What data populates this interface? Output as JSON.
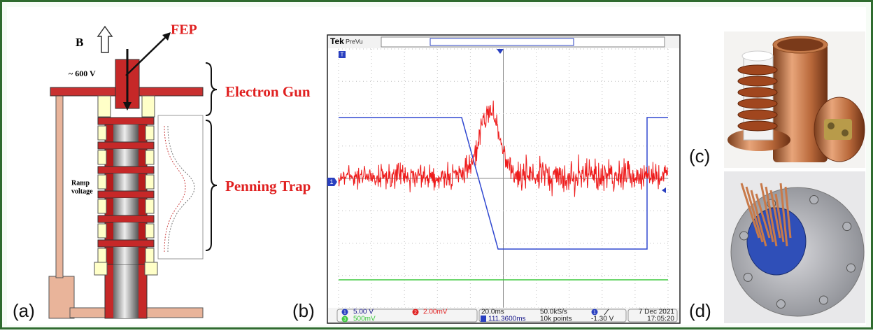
{
  "labels": {
    "a": "(a)",
    "b": "(b)",
    "c": "(c)",
    "d": "(d)"
  },
  "diagram": {
    "field": "B",
    "fep": "FEP",
    "voltage": "~ 600 V",
    "electron_gun": "Electron Gun",
    "penning_trap": "Penning Trap",
    "ramp": [
      "Ramp",
      "voltage"
    ]
  },
  "scope": {
    "brand": "Tek",
    "mode": "PreVu",
    "trigger_marker": "T",
    "ch_marker": "1",
    "status": {
      "ch1_num": "1",
      "ch1_scale": "5.00 V",
      "ch2_num": "2",
      "ch2_scale": "2.00mV",
      "ch3_num": "3",
      "ch3_scale": "500mV",
      "timebase": "20.0ms",
      "sample_rate": "50.0kS/s",
      "position": "111.3600ms",
      "record": "10k points",
      "trigger_source": "1",
      "trigger_level": "-1.30 V",
      "date": "7 Dec 2021",
      "time": "17:05:20"
    }
  }
}
